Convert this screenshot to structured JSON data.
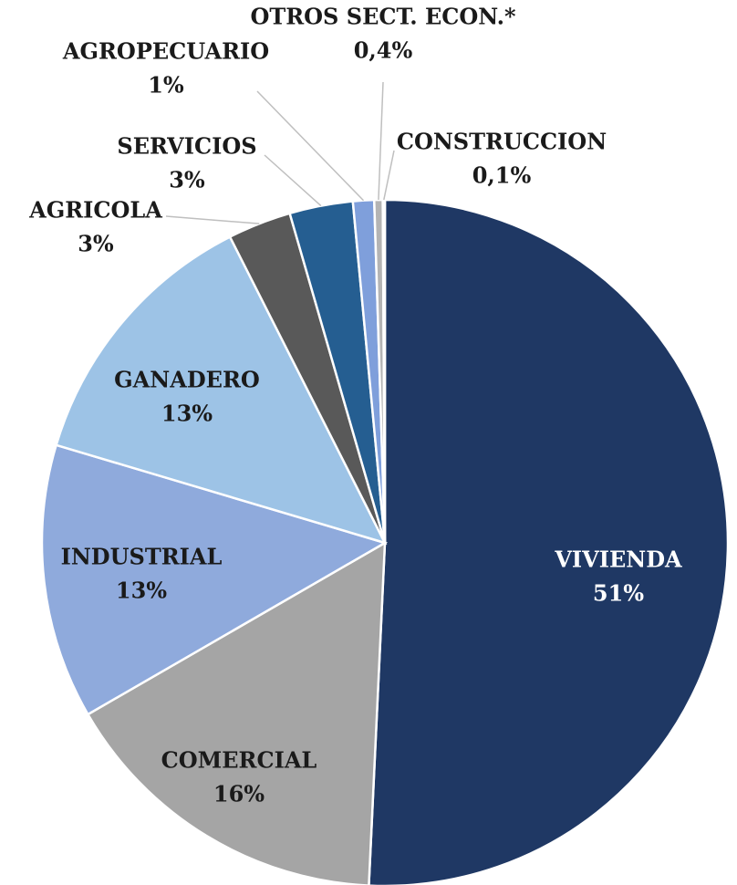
{
  "chart_data": {
    "type": "pie",
    "categories": [
      "VIVIENDA",
      "COMERCIAL",
      "INDUSTRIAL",
      "GANADERO",
      "AGRICOLA",
      "SERVICIOS",
      "AGROPECUARIO",
      "OTROS SECT. ECON.*",
      "CONSTRUCCION"
    ],
    "values": [
      51,
      16,
      13,
      13,
      3,
      3,
      1,
      0.4,
      0.1
    ],
    "value_labels": [
      "51%",
      "16%",
      "13%",
      "13%",
      "3%",
      "3%",
      "1%",
      "0,4%",
      "0,1%"
    ],
    "colors": [
      "#1f3864",
      "#a5a5a5",
      "#8faadc",
      "#9dc3e6",
      "#595959",
      "#255e91",
      "#7f9fdb",
      "#b4b4b4",
      "#d9d9d9"
    ]
  }
}
